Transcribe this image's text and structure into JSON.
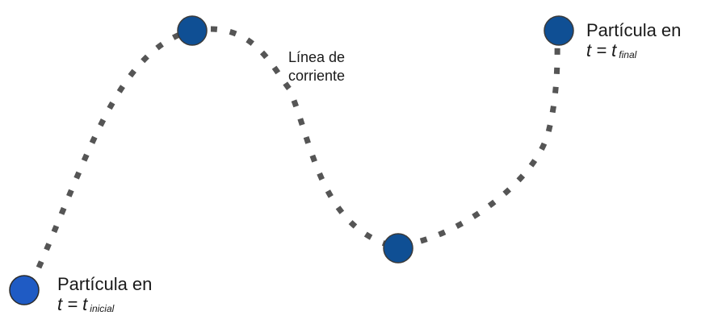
{
  "diagram": {
    "streamline_label": [
      "Línea de",
      "corriente"
    ],
    "start_particle": {
      "title": "Partícula en",
      "time_prefix": "t = t",
      "time_subscript": "inicial"
    },
    "end_particle": {
      "title": "Partícula en",
      "time_prefix": "t = t",
      "time_subscript": "final"
    },
    "colors": {
      "particle_start": "#1f5bc4",
      "particle_other": "#0f4f94",
      "particle_stroke": "#2a2a2a",
      "streamline": "#555555"
    }
  }
}
